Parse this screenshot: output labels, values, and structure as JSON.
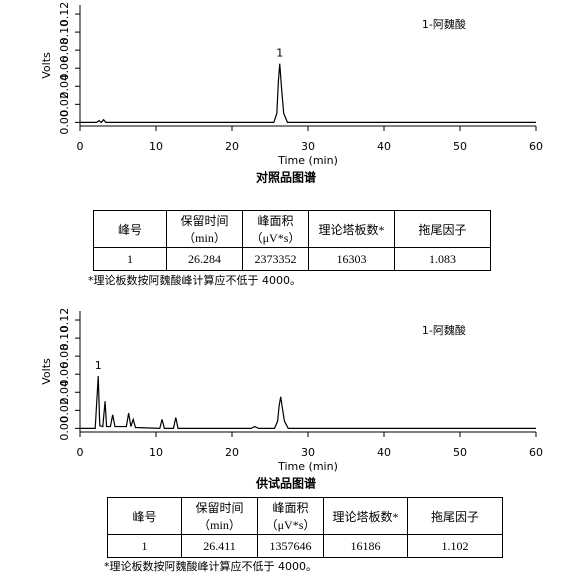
{
  "chart_data": [
    {
      "type": "line",
      "annotation": "1-阿魏酸",
      "peak_label": "1",
      "y_label": "Volts",
      "x_label": "Time (min)",
      "caption": "对照品图谱",
      "xlim": [
        0,
        60
      ],
      "xticks": [
        0,
        10,
        20,
        30,
        40,
        50,
        60
      ],
      "ylim": [
        -0.004,
        0.13
      ],
      "yticks": [
        {
          "value": 0,
          "label": "0.00"
        },
        {
          "value": 0.02,
          "label": "0.02"
        },
        {
          "value": 0.04,
          "label": "0.04"
        },
        {
          "value": 0.06,
          "label": "0.06"
        },
        {
          "value": 0.08,
          "label": "0.08"
        },
        {
          "value": 0.1,
          "label": "0.10"
        },
        {
          "value": 0.12,
          "label": "0.12"
        }
      ],
      "color": "#000000",
      "x": [
        0,
        2.2,
        2.5,
        2.8,
        3.1,
        3.4,
        3.7,
        25.5,
        25.9,
        26.1,
        26.284,
        26.5,
        26.8,
        27.3,
        60
      ],
      "values": [
        0,
        0,
        0.002,
        0,
        0.003,
        0,
        0,
        0,
        0.01,
        0.045,
        0.065,
        0.04,
        0.01,
        0,
        0
      ]
    },
    {
      "type": "line",
      "annotation": "1-阿魏酸",
      "peak_label": "1",
      "y_label": "Volts",
      "x_label": "Time (min)",
      "caption": "供试品图谱",
      "xlim": [
        0,
        60
      ],
      "xticks": [
        0,
        10,
        20,
        30,
        40,
        50,
        60
      ],
      "ylim": [
        -0.004,
        0.13
      ],
      "yticks": [
        {
          "value": 0,
          "label": "0.00"
        },
        {
          "value": 0.02,
          "label": "0.02"
        },
        {
          "value": 0.04,
          "label": "0.04"
        },
        {
          "value": 0.06,
          "label": "0.06"
        },
        {
          "value": 0.08,
          "label": "0.08"
        },
        {
          "value": 0.1,
          "label": "0.10"
        },
        {
          "value": 0.12,
          "label": "0.12"
        }
      ],
      "color": "#000000",
      "x": [
        0,
        2.0,
        2.4,
        2.6,
        3.0,
        3.3,
        3.5,
        4.0,
        4.3,
        4.6,
        6.1,
        6.4,
        6.7,
        7.0,
        7.3,
        10.5,
        10.8,
        11.1,
        12.3,
        12.6,
        12.9,
        22.5,
        23.0,
        23.5,
        25.6,
        26.0,
        26.2,
        26.411,
        26.6,
        26.9,
        27.4,
        60
      ],
      "values": [
        0,
        0,
        0.058,
        0.003,
        0.002,
        0.03,
        0.002,
        0.002,
        0.015,
        0.002,
        0.002,
        0.017,
        0.002,
        0.01,
        0.001,
        0,
        0.01,
        0,
        0,
        0.012,
        0,
        0,
        0.002,
        0,
        0,
        0.008,
        0.025,
        0.035,
        0.024,
        0.008,
        0,
        0
      ]
    }
  ],
  "tables": [
    {
      "header": [
        "峰号",
        "保留时间\n（min）",
        "峰面积\n（μV*s）",
        "理论塔板数*",
        "拖尾因子"
      ],
      "row": [
        "1",
        "26.284",
        "2373352",
        "16303",
        "1.083"
      ],
      "note": "*理论板数按阿魏酸峰计算应不低于 4000。"
    },
    {
      "header": [
        "峰号",
        "保留时间\n（min）",
        "峰面积\n（μV*s）",
        "理论塔板数*",
        "拖尾因子"
      ],
      "row": [
        "1",
        "26.411",
        "1357646",
        "16186",
        "1.102"
      ],
      "note": "*理论板数按阿魏酸峰计算应不低于 4000。"
    }
  ]
}
